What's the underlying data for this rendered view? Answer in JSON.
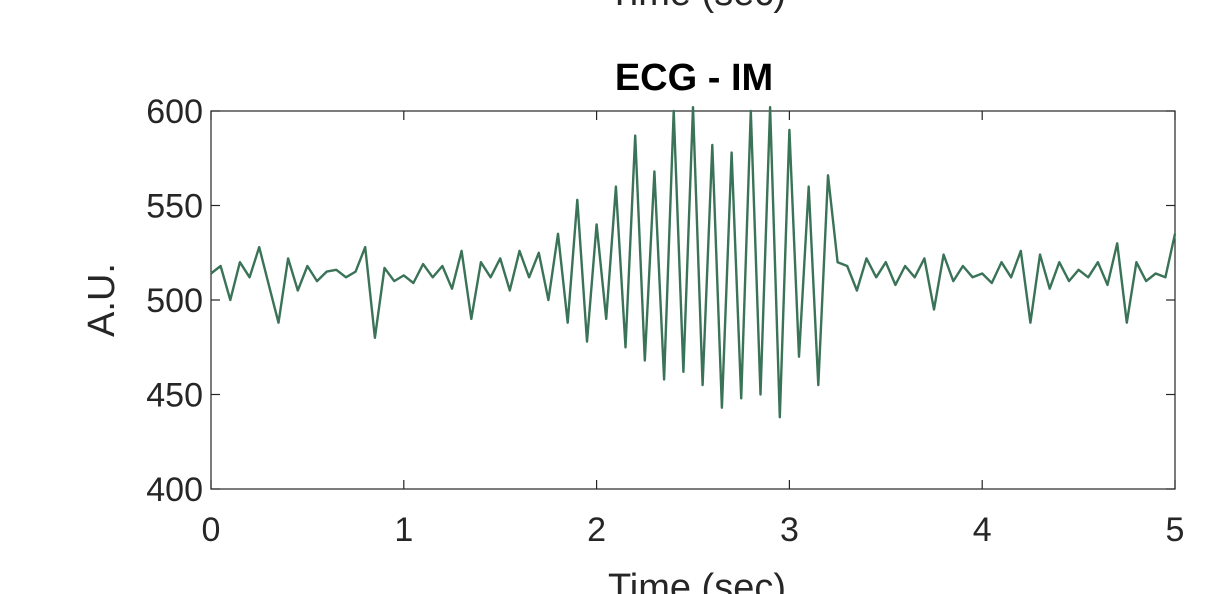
{
  "top_cropped_label": "Time (sec)",
  "chart_data": {
    "type": "line",
    "title": "ECG - IM",
    "xlabel": "Time (sec)",
    "ylabel": "A.U.",
    "xlim": [
      0,
      5
    ],
    "ylim": [
      400,
      600
    ],
    "xticks": [
      0,
      1,
      2,
      3,
      4,
      5
    ],
    "yticks": [
      400,
      450,
      500,
      550,
      600
    ],
    "grid": false,
    "series": [
      {
        "color": "#3a7357",
        "x": [
          0,
          0.05,
          0.1,
          0.15,
          0.2,
          0.25,
          0.3,
          0.35,
          0.4,
          0.45,
          0.5,
          0.55,
          0.6,
          0.65,
          0.7,
          0.75,
          0.8,
          0.85,
          0.9,
          0.95,
          1.0,
          1.05,
          1.1,
          1.15,
          1.2,
          1.25,
          1.3,
          1.35,
          1.4,
          1.45,
          1.5,
          1.55,
          1.6,
          1.65,
          1.7,
          1.75,
          1.8,
          1.85,
          1.9,
          1.95,
          2.0,
          2.05,
          2.1,
          2.15,
          2.2,
          2.25,
          2.3,
          2.35,
          2.4,
          2.45,
          2.5,
          2.55,
          2.6,
          2.65,
          2.7,
          2.75,
          2.8,
          2.85,
          2.9,
          2.95,
          3.0,
          3.05,
          3.1,
          3.15,
          3.2,
          3.25,
          3.3,
          3.35,
          3.4,
          3.45,
          3.5,
          3.55,
          3.6,
          3.65,
          3.7,
          3.75,
          3.8,
          3.85,
          3.9,
          3.95,
          4.0,
          4.05,
          4.1,
          4.15,
          4.2,
          4.25,
          4.3,
          4.35,
          4.4,
          4.45,
          4.5,
          4.55,
          4.6,
          4.65,
          4.7,
          4.75,
          4.8,
          4.85,
          4.9,
          4.95,
          5.0
        ],
        "values": [
          514,
          518,
          500,
          520,
          512,
          528,
          508,
          488,
          522,
          505,
          518,
          510,
          515,
          516,
          512,
          515,
          528,
          480,
          517,
          510,
          513,
          509,
          519,
          512,
          518,
          506,
          526,
          490,
          520,
          512,
          522,
          505,
          526,
          512,
          525,
          500,
          535,
          488,
          553,
          478,
          540,
          490,
          560,
          475,
          587,
          468,
          568,
          458,
          600,
          462,
          602,
          455,
          582,
          443,
          578,
          448,
          600,
          450,
          602,
          438,
          590,
          470,
          560,
          455,
          566,
          520,
          518,
          505,
          522,
          512,
          520,
          508,
          518,
          512,
          522,
          495,
          524,
          510,
          518,
          512,
          514,
          509,
          520,
          512,
          526,
          488,
          524,
          506,
          520,
          510,
          516,
          512,
          520,
          508,
          530,
          488,
          520,
          510,
          514,
          512,
          535
        ]
      }
    ]
  }
}
